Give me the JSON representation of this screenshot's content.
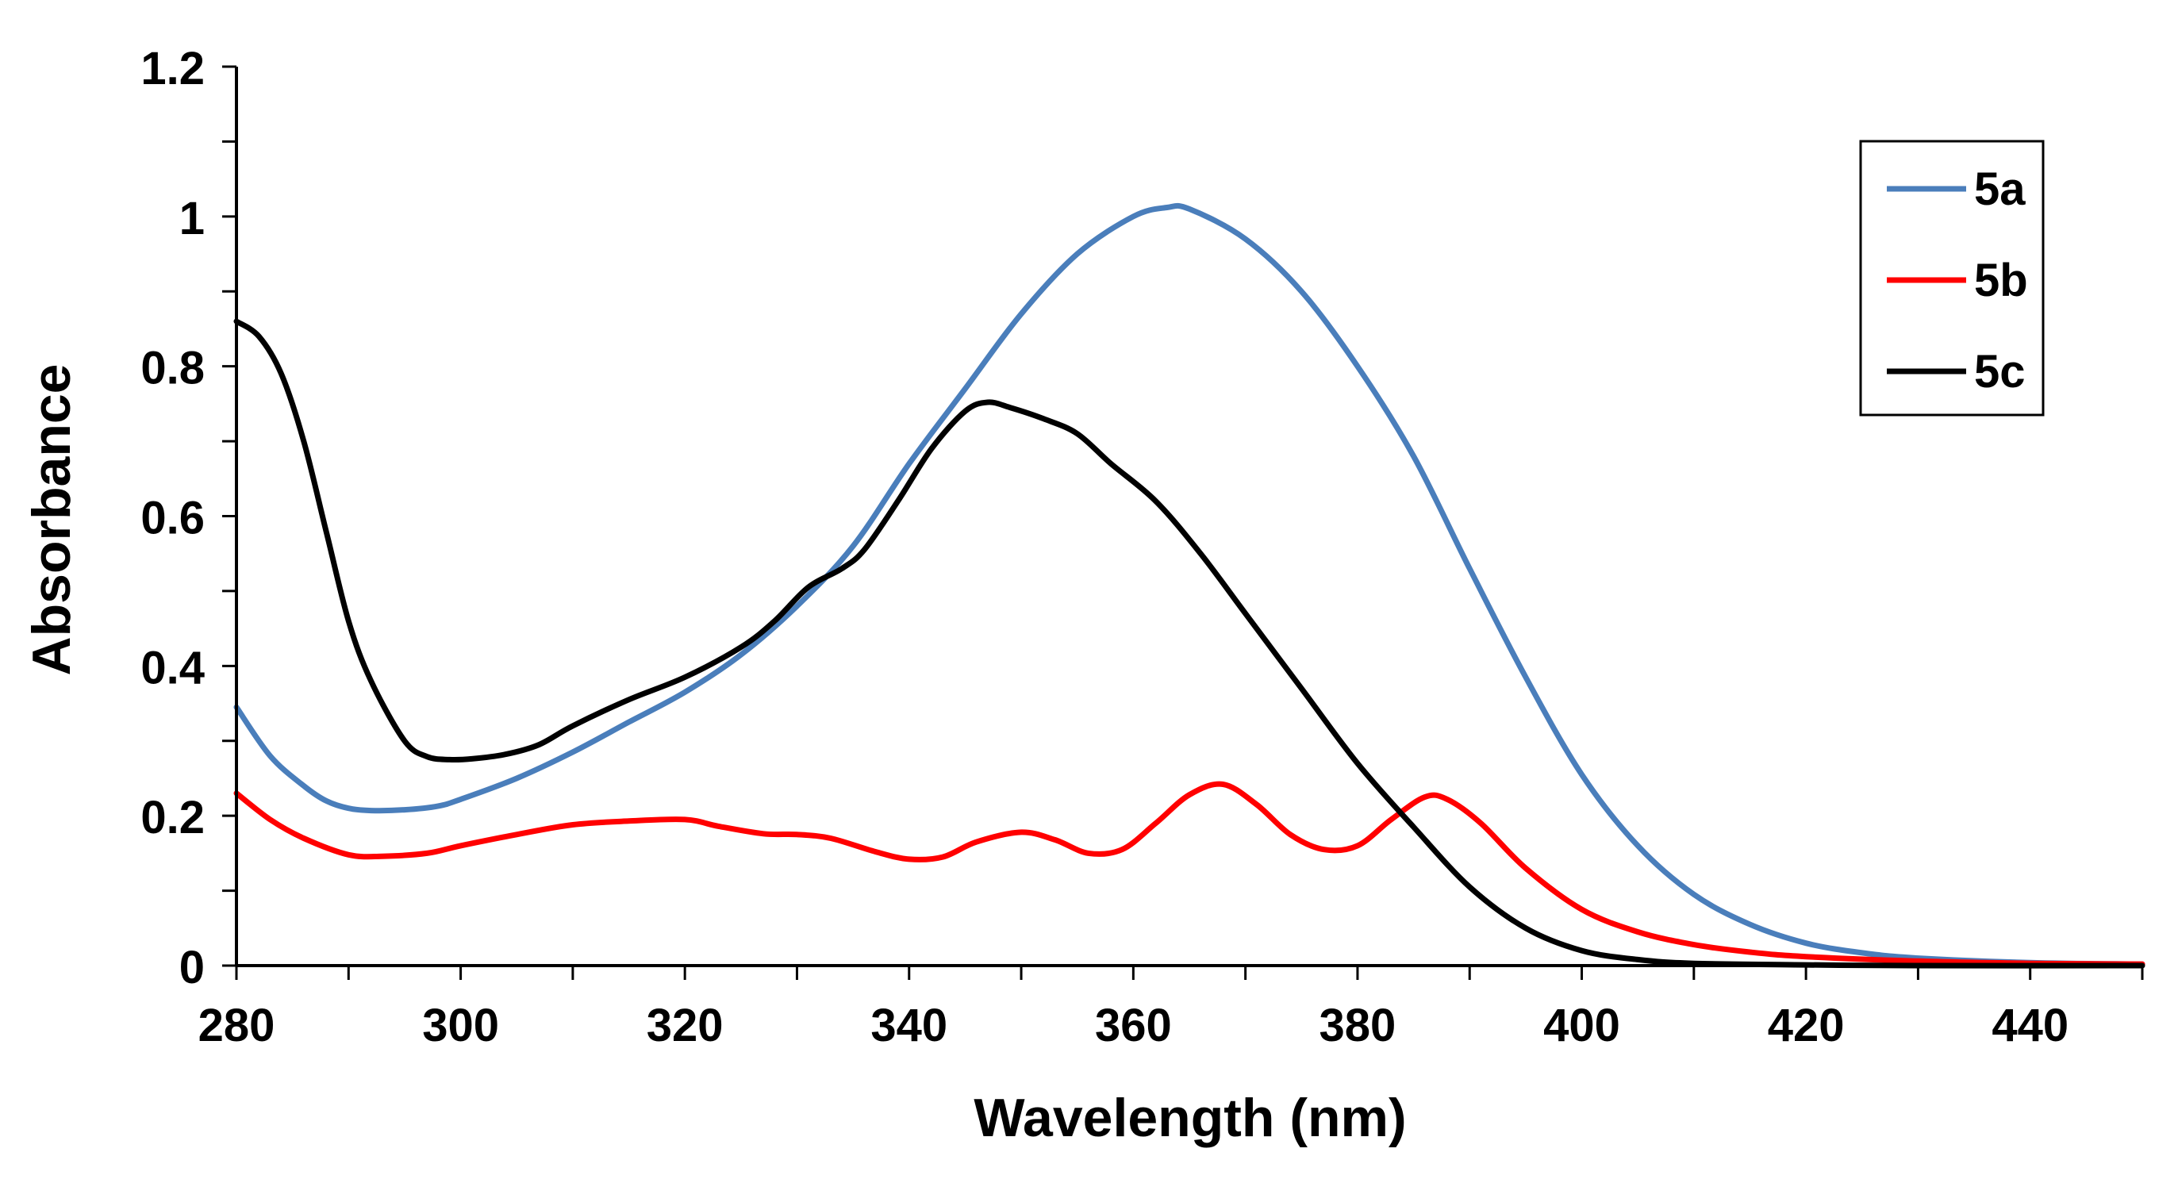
{
  "chart_data": {
    "type": "line",
    "title": "",
    "xlabel": "Wavelength (nm)",
    "ylabel": "Absorbance",
    "xlim": [
      280,
      450
    ],
    "ylim": [
      0,
      1.2
    ],
    "x_ticks": [
      280,
      300,
      320,
      340,
      360,
      380,
      400,
      420,
      440
    ],
    "y_ticks": [
      0,
      0.2,
      0.4,
      0.6,
      0.8,
      1,
      1.2
    ],
    "y_tick_labels": [
      "0",
      "0.2",
      "0.4",
      "0.6",
      "0.8",
      "1",
      "1.2"
    ],
    "grid": false,
    "legend_position": "top-right",
    "series": [
      {
        "name": "5a",
        "color": "#4a7ebb",
        "x": [
          280,
          283,
          286,
          288,
          290,
          292,
          295,
          298,
          300,
          305,
          310,
          315,
          320,
          325,
          330,
          335,
          340,
          345,
          350,
          355,
          360,
          363,
          365,
          370,
          375,
          380,
          385,
          390,
          395,
          400,
          405,
          410,
          415,
          420,
          425,
          430,
          440,
          450
        ],
        "y": [
          0.345,
          0.28,
          0.24,
          0.22,
          0.21,
          0.207,
          0.208,
          0.213,
          0.222,
          0.25,
          0.285,
          0.325,
          0.365,
          0.415,
          0.48,
          0.56,
          0.67,
          0.77,
          0.87,
          0.95,
          1.0,
          1.012,
          1.01,
          0.97,
          0.9,
          0.8,
          0.68,
          0.53,
          0.385,
          0.255,
          0.16,
          0.095,
          0.055,
          0.03,
          0.017,
          0.01,
          0.004,
          0.002
        ]
      },
      {
        "name": "5b",
        "color": "#ff0000",
        "x": [
          280,
          283,
          286,
          290,
          293,
          297,
          300,
          305,
          310,
          315,
          320,
          323,
          327,
          330,
          333,
          337,
          340,
          343,
          346,
          350,
          353,
          356,
          359,
          362,
          365,
          368,
          371,
          374,
          377,
          380,
          383,
          386,
          388,
          391,
          395,
          400,
          405,
          410,
          415,
          420,
          430,
          440,
          450
        ],
        "y": [
          0.23,
          0.195,
          0.17,
          0.148,
          0.146,
          0.15,
          0.16,
          0.175,
          0.188,
          0.193,
          0.195,
          0.186,
          0.176,
          0.175,
          0.17,
          0.152,
          0.142,
          0.145,
          0.165,
          0.178,
          0.168,
          0.15,
          0.155,
          0.19,
          0.228,
          0.242,
          0.215,
          0.175,
          0.155,
          0.16,
          0.195,
          0.225,
          0.222,
          0.19,
          0.13,
          0.075,
          0.045,
          0.028,
          0.018,
          0.012,
          0.006,
          0.003,
          0.002
        ]
      },
      {
        "name": "5c",
        "color": "#000000",
        "x": [
          280,
          282,
          284,
          286,
          288,
          290,
          292,
          295,
          297,
          299,
          301,
          304,
          307,
          310,
          315,
          320,
          325,
          328,
          331,
          334,
          336,
          339,
          342,
          345,
          347,
          349,
          352,
          355,
          358,
          362,
          366,
          370,
          375,
          380,
          385,
          390,
          395,
          400,
          405,
          410,
          420,
          430,
          450
        ],
        "y": [
          0.86,
          0.84,
          0.79,
          0.7,
          0.58,
          0.46,
          0.38,
          0.3,
          0.279,
          0.275,
          0.276,
          0.282,
          0.295,
          0.32,
          0.355,
          0.385,
          0.425,
          0.46,
          0.505,
          0.53,
          0.555,
          0.62,
          0.69,
          0.74,
          0.752,
          0.745,
          0.73,
          0.71,
          0.67,
          0.62,
          0.55,
          0.47,
          0.37,
          0.27,
          0.185,
          0.105,
          0.05,
          0.02,
          0.008,
          0.003,
          0.001,
          0.0,
          0.0
        ]
      }
    ]
  }
}
